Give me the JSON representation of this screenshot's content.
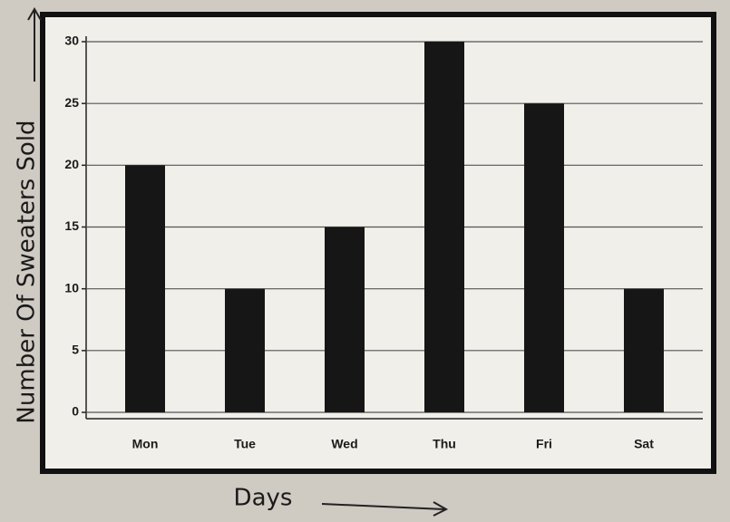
{
  "chart_data": {
    "type": "bar",
    "x_label": "Days",
    "y_label": "Number Of Sweaters Sold",
    "categories": [
      "Mon",
      "Tue",
      "Wed",
      "Thu",
      "Fri",
      "Sat"
    ],
    "values": [
      20,
      10,
      15,
      30,
      25,
      10
    ],
    "color": "#161616",
    "ylim": [
      0,
      30
    ],
    "yticks": [
      0,
      5,
      10,
      15,
      20,
      25,
      30
    ],
    "grid": true
  }
}
